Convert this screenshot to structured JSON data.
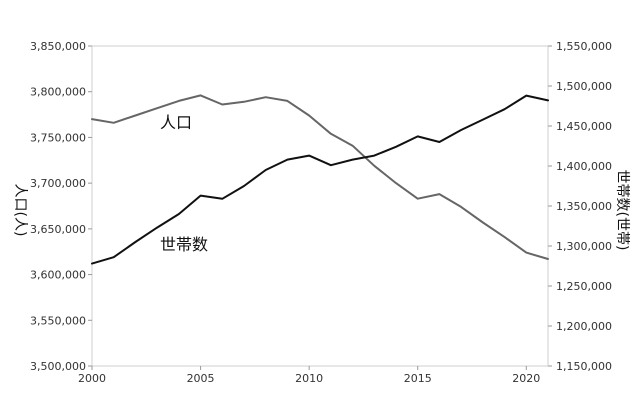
{
  "chart_data": {
    "type": "line",
    "x_ticks": [
      2000,
      2005,
      2010,
      2015,
      2020
    ],
    "x_range": [
      2000,
      2021
    ],
    "y_left": {
      "label": "人口(人)",
      "range": [
        3500000,
        3850000
      ],
      "ticks": [
        "3,500,000",
        "3,550,000",
        "3,600,000",
        "3,650,000",
        "3,700,000",
        "3,750,000",
        "3,800,000",
        "3,850,000"
      ]
    },
    "y_right": {
      "label": "世帯数(世帯)",
      "range": [
        1150000,
        1550000
      ],
      "ticks": [
        "1,150,000",
        "1,200,000",
        "1,250,000",
        "1,300,000",
        "1,350,000",
        "1,400,000",
        "1,450,000",
        "1,500,000",
        "1,550,000"
      ]
    },
    "grid": false,
    "series": [
      {
        "name": "人口",
        "axis": "left",
        "color": "#666666",
        "x": [
          2000,
          2001,
          2002,
          2003,
          2004,
          2005,
          2006,
          2007,
          2008,
          2009,
          2010,
          2011,
          2012,
          2013,
          2014,
          2015,
          2016,
          2017,
          2018,
          2019,
          2020,
          2021
        ],
        "y": [
          3770000,
          3766000,
          3774000,
          3782000,
          3790000,
          3796000,
          3786000,
          3789000,
          3794000,
          3790000,
          3774000,
          3754000,
          3741000,
          3719000,
          3700000,
          3683000,
          3688000,
          3674000,
          3657000,
          3641000,
          3624000,
          3617000
        ]
      },
      {
        "name": "世帯数",
        "axis": "right",
        "color": "#111111",
        "x": [
          2000,
          2001,
          2002,
          2003,
          2004,
          2005,
          2006,
          2007,
          2008,
          2009,
          2010,
          2011,
          2012,
          2013,
          2014,
          2015,
          2016,
          2017,
          2018,
          2019,
          2020,
          2021
        ],
        "y": [
          1278000,
          1286000,
          1305000,
          1323000,
          1340000,
          1363000,
          1359000,
          1375000,
          1395000,
          1408000,
          1413000,
          1401000,
          1408000,
          1413000,
          1424000,
          1437000,
          1430000,
          1445000,
          1458000,
          1471000,
          1488000,
          1482000
        ]
      }
    ]
  }
}
